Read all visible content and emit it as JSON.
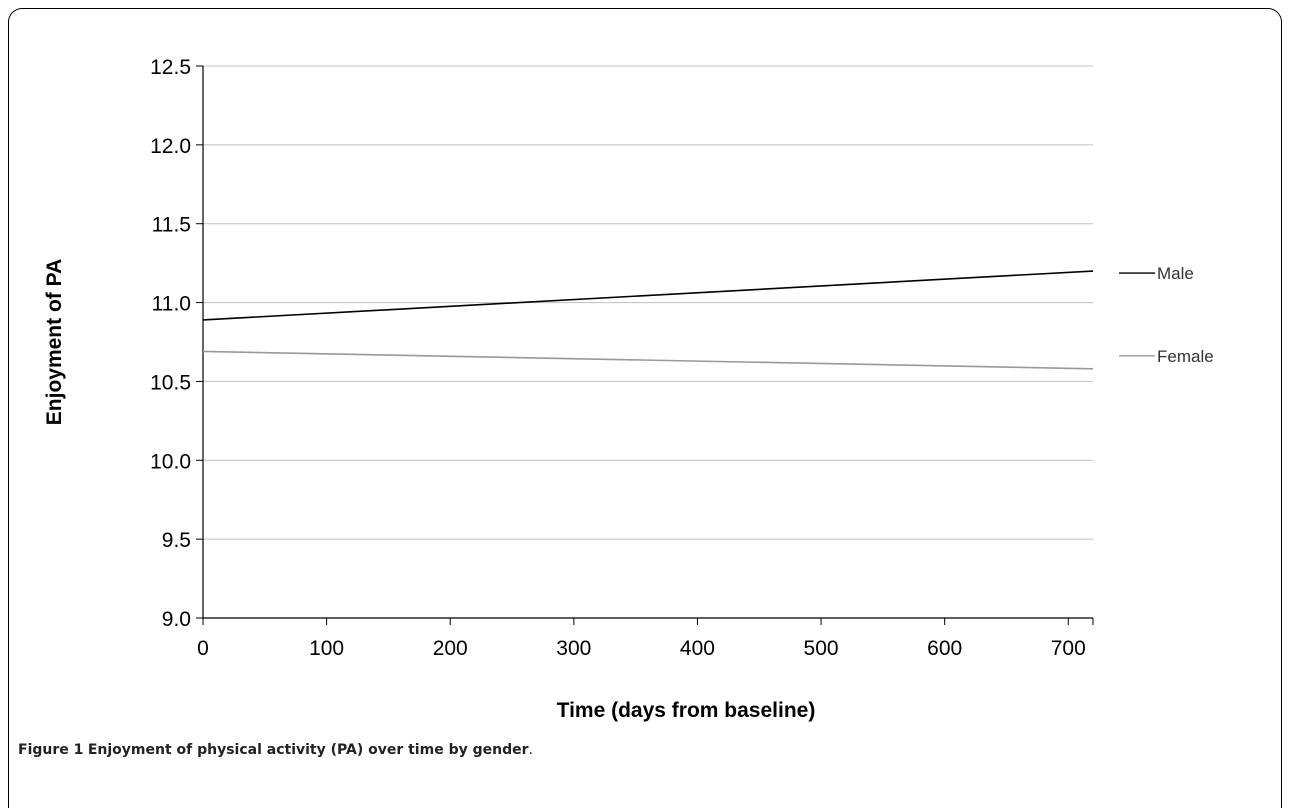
{
  "caption": {
    "label": "Figure 1",
    "text": "Enjoyment of physical activity (PA) over time by gender",
    "end": "."
  },
  "chart_data": {
    "type": "line",
    "title": "",
    "xlabel": "Time (days from baseline)",
    "ylabel": "Enjoyment of PA",
    "xlim": [
      0,
      720
    ],
    "ylim": [
      9.0,
      12.5
    ],
    "xticks": [
      0,
      100,
      200,
      300,
      400,
      500,
      600,
      700
    ],
    "yticks": [
      "9.0",
      "9.5",
      "10.0",
      "10.5",
      "11.0",
      "11.5",
      "12.0",
      "12.5"
    ],
    "grid": "horizontal",
    "legend": "right",
    "series": [
      {
        "name": "Male",
        "color": "#000000",
        "x": [
          0,
          720
        ],
        "y": [
          10.89,
          11.2
        ]
      },
      {
        "name": "Female",
        "color": "#999999",
        "x": [
          0,
          720
        ],
        "y": [
          10.69,
          10.58
        ]
      }
    ]
  }
}
